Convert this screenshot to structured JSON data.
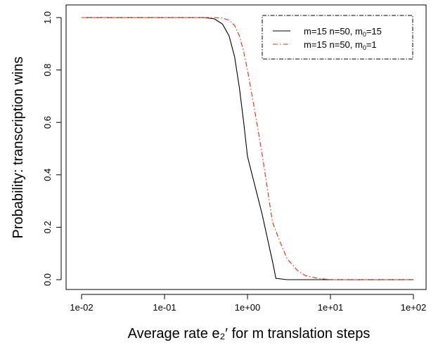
{
  "chart_data": {
    "type": "line",
    "xlabel": "Average rate e₂′ for m translation steps",
    "ylabel": "Probability: transcription wins",
    "x_scale": "log",
    "xlim": [
      0.01,
      100
    ],
    "ylim": [
      0,
      1
    ],
    "x_ticks": [
      {
        "value": 0.01,
        "label": "1e-02"
      },
      {
        "value": 0.1,
        "label": "1e-01"
      },
      {
        "value": 1,
        "label": "1e+00"
      },
      {
        "value": 10,
        "label": "1e+01"
      },
      {
        "value": 100,
        "label": "1e+02"
      }
    ],
    "y_ticks": [
      {
        "value": 0.0,
        "label": "0.0"
      },
      {
        "value": 0.2,
        "label": "0.2"
      },
      {
        "value": 0.4,
        "label": "0.4"
      },
      {
        "value": 0.6,
        "label": "0.6"
      },
      {
        "value": 0.8,
        "label": "0.8"
      },
      {
        "value": 1.0,
        "label": "1.0"
      }
    ],
    "grid": false,
    "legend_position": "top-right",
    "series": [
      {
        "name": "m=15 n=50, m0=15",
        "legend_main": "m=15 n=50, m",
        "legend_sub": "0",
        "legend_tail": "=15",
        "color": "#000000",
        "dash": "solid",
        "x": [
          0.01,
          0.1,
          0.3,
          0.4,
          0.5,
          0.6,
          0.7,
          0.8,
          0.9,
          1.0,
          1.5,
          2.0,
          2.2,
          3.0,
          5.0,
          10.0,
          100.0
        ],
        "y": [
          1.0,
          1.0,
          1.0,
          0.995,
          0.975,
          0.93,
          0.85,
          0.73,
          0.6,
          0.47,
          0.25,
          0.07,
          0.005,
          0.0,
          0.0,
          0.0,
          0.0
        ]
      },
      {
        "name": "m=15 n=50, m0=1",
        "legend_main": "m=15 n=50, m",
        "legend_sub": "0",
        "legend_tail": "=1",
        "color": "#e8280a",
        "dash": "dotdash",
        "x": [
          0.01,
          0.1,
          0.4,
          0.5,
          0.6,
          0.7,
          0.8,
          0.9,
          1.0,
          1.2,
          1.5,
          2.0,
          2.5,
          3.0,
          4.0,
          5.0,
          7.0,
          10.0,
          100.0
        ],
        "y": [
          1.0,
          1.0,
          1.0,
          0.998,
          0.99,
          0.97,
          0.93,
          0.87,
          0.8,
          0.66,
          0.48,
          0.22,
          0.14,
          0.08,
          0.035,
          0.015,
          0.005,
          0.0,
          0.0
        ]
      }
    ]
  }
}
